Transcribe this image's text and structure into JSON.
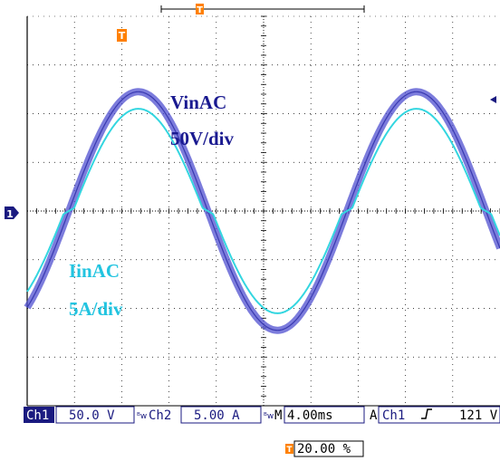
{
  "colors": {
    "background": "#ffffff",
    "grid": "#000000",
    "ch1": "#5050d0",
    "ch1_dark": "#3a3ab0",
    "ch2": "#33d6e0",
    "ch2_label": "#22b8d6",
    "trigger_marker": "#ff8000",
    "ch1_tag_bg": "#1a1a80",
    "readout_text": "#1a1a80"
  },
  "icons": {
    "trigger_position": "T-orange-marker",
    "trigger_level": "left-arrow",
    "ch1_ground": "ch1-ground-marker",
    "bandwidth_limit": "BW-icon",
    "edge_rise": "rising-edge-icon"
  },
  "labels": {
    "vin_name": "VinAC",
    "vin_scale": "50V/div",
    "iin_name": "IinAC",
    "iin_scale": "5A/div",
    "ch1_ground_marker": "1",
    "trigger_marker": "T"
  },
  "readout": {
    "ch1_tag": "Ch1",
    "ch1_scale": "50.0 V",
    "ch2_tag": "Ch2",
    "ch2_scale": "5.00 A",
    "timebase_prefix": "M",
    "timebase": "4.00ms",
    "acq_mode": "A",
    "trigger_source": "Ch1",
    "trigger_level": "121 V",
    "trigger_position": "20.00 %"
  },
  "chart_data": {
    "type": "line",
    "xlabel": "",
    "ylabel": "",
    "grid": true,
    "divisions": {
      "x": 10,
      "y": 8
    },
    "xlim": [
      0,
      40
    ],
    "ylim_divisions": [
      -4,
      4
    ],
    "series": [
      {
        "name": "VinAC",
        "channel": "Ch1",
        "scale": "50V/div",
        "amplitude_div": 2.45,
        "period_ms": 16.7,
        "shape": "sine"
      },
      {
        "name": "IinAC",
        "channel": "Ch2",
        "scale": "5A/div",
        "amplitude_div": 2.1,
        "period_ms": 16.7,
        "shape": "sine with zero-crossing dead-zone"
      }
    ]
  }
}
